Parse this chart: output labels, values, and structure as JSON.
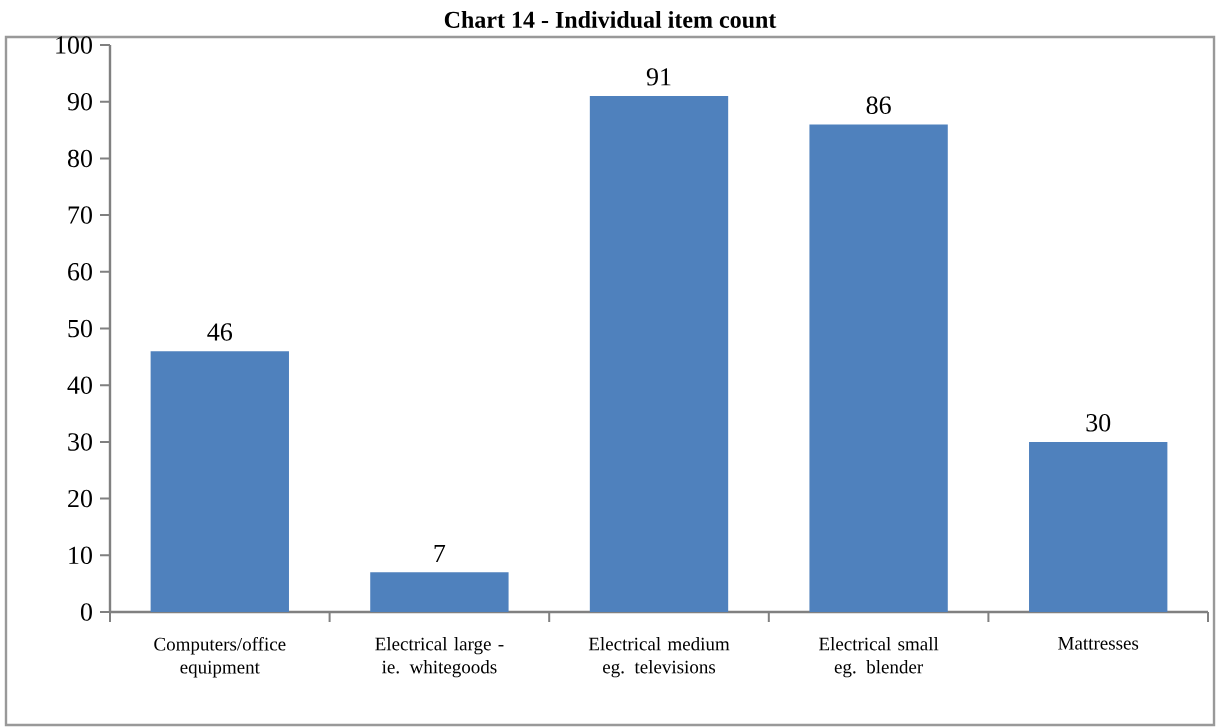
{
  "chart_data": {
    "type": "bar",
    "title": "Chart 14 - Individual item count",
    "categories": [
      "Computers/office equipment",
      "Electrical large - ie. whitegoods",
      "Electrical medium eg. televisions",
      "Electrical small eg. blender",
      "Mattresses"
    ],
    "values": [
      46,
      7,
      91,
      86,
      30
    ],
    "color": "#4f81bd",
    "ylim": [
      0,
      100
    ],
    "yticks": [
      0,
      10,
      20,
      30,
      40,
      50,
      60,
      70,
      80,
      90,
      100
    ],
    "data_labels": true,
    "grid": false
  }
}
